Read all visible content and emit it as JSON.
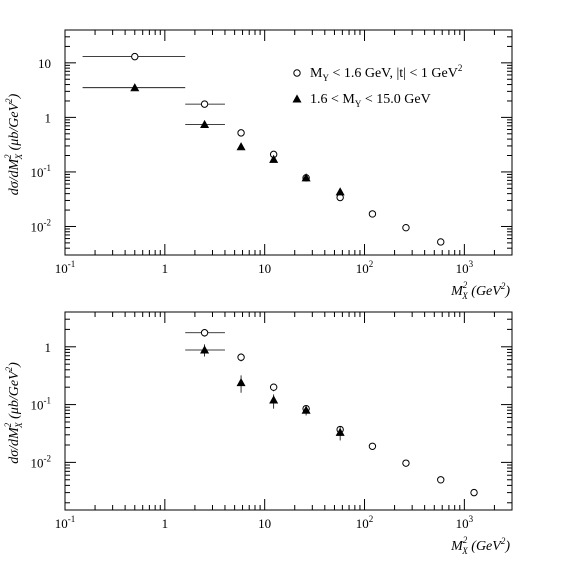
{
  "chart_data": [
    {
      "type": "scatter",
      "xscale": "log",
      "yscale": "log",
      "xlim": [
        0.1,
        3000
      ],
      "ylim": [
        0.003,
        40
      ],
      "xticks": [
        {
          "value": 0.1,
          "base": "10",
          "exp": "-1"
        },
        {
          "value": 1,
          "base": "1",
          "exp": ""
        },
        {
          "value": 10,
          "base": "10",
          "exp": ""
        },
        {
          "value": 100,
          "base": "10",
          "exp": "2"
        },
        {
          "value": 1000,
          "base": "10",
          "exp": "3"
        }
      ],
      "yticks": [
        {
          "value": 0.01,
          "base": "10",
          "exp": "-2"
        },
        {
          "value": 0.1,
          "base": "10",
          "exp": "-1"
        },
        {
          "value": 1,
          "base": "1",
          "exp": ""
        },
        {
          "value": 10,
          "base": "10",
          "exp": ""
        }
      ],
      "xlabel": {
        "main": "M",
        "sub": "X",
        "sup": "2",
        "unit": " (GeV",
        "unit_sup": "2",
        "close": ")"
      },
      "ylabel": {
        "main": "dσ/dM",
        "sub": "X",
        "sup": "2",
        "unit": " (μb/GeV",
        "unit_sup": "2",
        "close": ")"
      },
      "legend": {
        "placement": "top-right",
        "entries": [
          {
            "marker": "open-circle",
            "label": "M",
            "sub": "Y",
            "rest": " < 1.6 GeV, |t| < 1 GeV",
            "sup": "2"
          },
          {
            "marker": "filled-triangle",
            "label": "1.6 < M",
            "sub": "Y",
            "rest": " < 15.0 GeV",
            "sup": ""
          }
        ]
      },
      "series": [
        {
          "marker": "open-circle",
          "points": [
            {
              "x": 0.5,
              "y": 13.0,
              "xerr": [
                0.15,
                1.6
              ]
            },
            {
              "x": 2.5,
              "y": 1.75,
              "xerr": [
                1.6,
                4.0
              ]
            },
            {
              "x": 5.8,
              "y": 0.52
            },
            {
              "x": 12.3,
              "y": 0.21
            },
            {
              "x": 26.0,
              "y": 0.078
            },
            {
              "x": 57.0,
              "y": 0.034
            },
            {
              "x": 120.0,
              "y": 0.017
            },
            {
              "x": 260.0,
              "y": 0.0095
            },
            {
              "x": 580.0,
              "y": 0.0052
            }
          ]
        },
        {
          "marker": "filled-triangle",
          "points": [
            {
              "x": 0.5,
              "y": 3.5,
              "xerr": [
                0.15,
                1.6
              ]
            },
            {
              "x": 2.5,
              "y": 0.74,
              "xerr": [
                1.6,
                4.0
              ]
            },
            {
              "x": 5.8,
              "y": 0.29
            },
            {
              "x": 12.3,
              "y": 0.17
            },
            {
              "x": 26.0,
              "y": 0.078
            },
            {
              "x": 57.0,
              "y": 0.043
            }
          ]
        }
      ]
    },
    {
      "type": "scatter",
      "xscale": "log",
      "yscale": "log",
      "xlim": [
        0.1,
        3000
      ],
      "ylim": [
        0.0015,
        4
      ],
      "xticks": [
        {
          "value": 0.1,
          "base": "10",
          "exp": "-1"
        },
        {
          "value": 1,
          "base": "1",
          "exp": ""
        },
        {
          "value": 10,
          "base": "10",
          "exp": ""
        },
        {
          "value": 100,
          "base": "10",
          "exp": "2"
        },
        {
          "value": 1000,
          "base": "10",
          "exp": "3"
        }
      ],
      "yticks": [
        {
          "value": 0.01,
          "base": "10",
          "exp": "-2"
        },
        {
          "value": 0.1,
          "base": "10",
          "exp": "-1"
        },
        {
          "value": 1,
          "base": "1",
          "exp": ""
        }
      ],
      "xlabel": {
        "main": "M",
        "sub": "X",
        "sup": "2",
        "unit": " (GeV",
        "unit_sup": "2",
        "close": ")"
      },
      "ylabel": {
        "main": "dσ/dM",
        "sub": "X",
        "sup": "2",
        "unit": " (μb/GeV",
        "unit_sup": "2",
        "close": ")"
      },
      "series": [
        {
          "marker": "open-circle",
          "points": [
            {
              "x": 2.5,
              "y": 1.75,
              "xerr": [
                1.6,
                4.0
              ],
              "yerr": [
                1.5,
                2.0
              ]
            },
            {
              "x": 5.8,
              "y": 0.66,
              "yerr": [
                0.56,
                0.77
              ]
            },
            {
              "x": 12.3,
              "y": 0.2,
              "yerr": [
                0.17,
                0.23
              ]
            },
            {
              "x": 26.0,
              "y": 0.085,
              "yerr": [
                0.072,
                0.098
              ]
            },
            {
              "x": 57.0,
              "y": 0.037,
              "yerr": [
                0.032,
                0.042
              ]
            },
            {
              "x": 120.0,
              "y": 0.019
            },
            {
              "x": 260.0,
              "y": 0.0097
            },
            {
              "x": 580.0,
              "y": 0.005
            },
            {
              "x": 1250.0,
              "y": 0.003,
              "yerr": [
                0.0026,
                0.0034
              ]
            }
          ]
        },
        {
          "marker": "filled-triangle",
          "points": [
            {
              "x": 2.5,
              "y": 0.88,
              "xerr": [
                1.6,
                4.0
              ],
              "yerr": [
                0.68,
                1.1
              ]
            },
            {
              "x": 5.8,
              "y": 0.24,
              "yerr": [
                0.16,
                0.32
              ]
            },
            {
              "x": 12.3,
              "y": 0.12,
              "yerr": [
                0.085,
                0.15
              ]
            },
            {
              "x": 26.0,
              "y": 0.08,
              "yerr": [
                0.065,
                0.095
              ]
            },
            {
              "x": 57.0,
              "y": 0.033,
              "yerr": [
                0.024,
                0.042
              ]
            }
          ]
        }
      ]
    }
  ]
}
